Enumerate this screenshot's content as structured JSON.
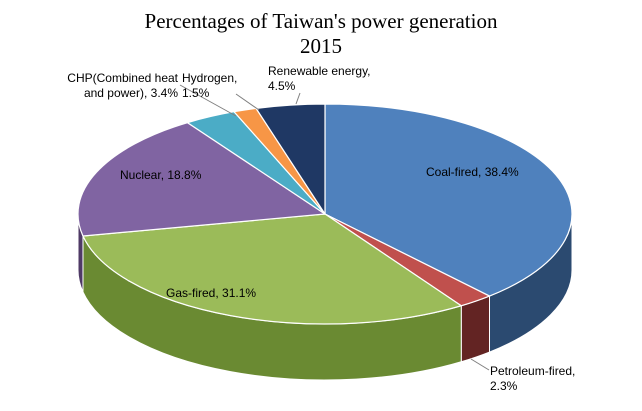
{
  "chart_data": {
    "type": "pie",
    "title": "Percentages of Taiwan's power generation",
    "subtitle": "2015",
    "slices": [
      {
        "name": "Coal-fired",
        "value": 38.4,
        "label_lines": [
          "Coal-fired, 38.4%"
        ],
        "color": "#4f81bd",
        "side": "#2b4a70"
      },
      {
        "name": "Petroleum-fired",
        "value": 2.3,
        "label_lines": [
          "Petroleum-fired,",
          "2.3%"
        ],
        "color": "#c0504d",
        "side": "#632423"
      },
      {
        "name": "Gas-fired",
        "value": 31.1,
        "label_lines": [
          "Gas-fired, 31.1%"
        ],
        "color": "#9bbb59",
        "side": "#6a8a32"
      },
      {
        "name": "Nuclear",
        "value": 18.8,
        "label_lines": [
          "Nuclear, 18.8%"
        ],
        "color": "#8064a2",
        "side": "#4f3a66"
      },
      {
        "name": "CHP(Combined heat and power)",
        "value": 3.4,
        "label_lines": [
          "CHP(Combined heat",
          "and power), 3.4%"
        ],
        "color": "#4bacc6",
        "side": "#27657a"
      },
      {
        "name": "Hydrogen",
        "value": 1.5,
        "label_lines": [
          "Hydrogen,",
          "1.5%"
        ],
        "color": "#f79646",
        "side": "#a85f20"
      },
      {
        "name": "Renewable energy",
        "value": 4.5,
        "label_lines": [
          "Renewable energy,",
          "4.5%"
        ],
        "color": "#1f3864",
        "side": "#101d35"
      }
    ],
    "grid": false,
    "legend": "none"
  }
}
